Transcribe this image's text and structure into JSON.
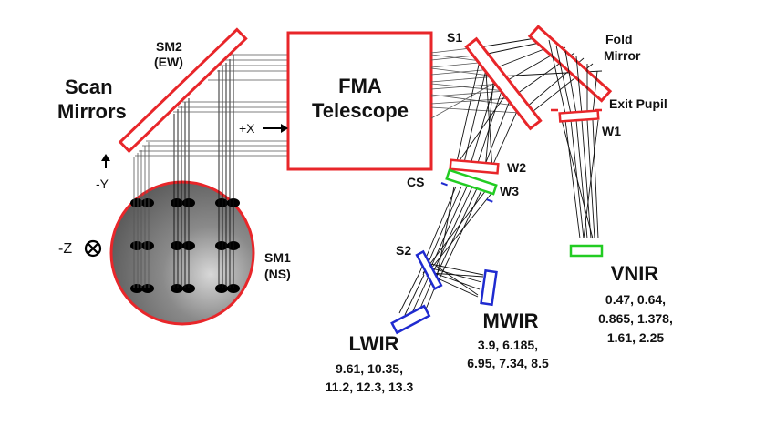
{
  "scan_mirrors": {
    "title_line1": "Scan",
    "title_line2": "Mirrors",
    "sm2_line1": "SM2",
    "sm2_line2": "(EW)",
    "sm1_line1": "SM1",
    "sm1_line2": "(NS)"
  },
  "telescope": {
    "line1": "FMA",
    "line2": "Telescope"
  },
  "axes": {
    "x": "+X",
    "y": "-Y",
    "z": "-Z"
  },
  "optics": {
    "s1": "S1",
    "s2": "S2",
    "fold_line1": "Fold",
    "fold_line2": "Mirror",
    "exit_pupil": "Exit Pupil",
    "w1": "W1",
    "w2": "W2",
    "w3": "W3",
    "cs": "CS"
  },
  "bands": {
    "lwir": {
      "name": "LWIR",
      "line1": "9.61, 10.35,",
      "line2": "11.2, 12.3, 13.3"
    },
    "mwir": {
      "name": "MWIR",
      "line1": "3.9, 6.185,",
      "line2": "6.95, 7.34, 8.5"
    },
    "vnir": {
      "name": "VNIR",
      "line1": "0.47, 0.64,",
      "line2": "0.865, 1.378,",
      "line3": "1.61, 2.25"
    }
  },
  "colors": {
    "mirror": "#e8262a",
    "lwir_detector": "#1f2bd0",
    "mwir_detector": "#1f2bd0",
    "vnir_detector": "#22cc22",
    "cold_stop": "#22cc22"
  }
}
